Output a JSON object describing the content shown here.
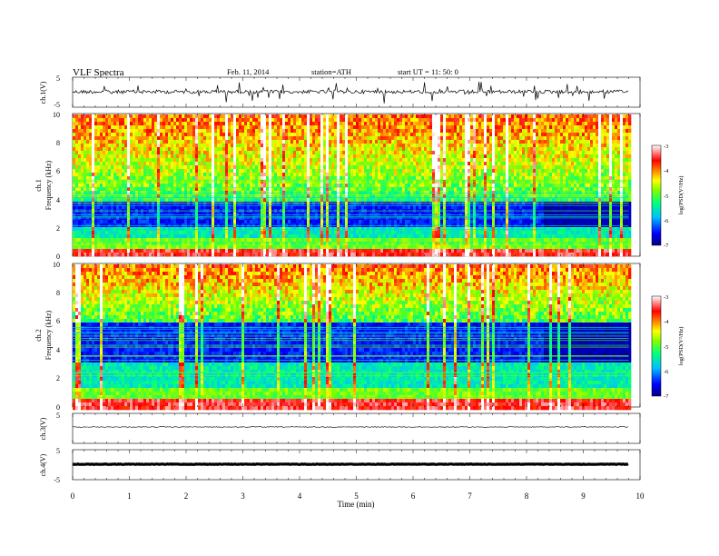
{
  "header": {
    "title": "VLF  Spectra",
    "date": "Feb. 11, 2014",
    "station": "station=ATH",
    "start": "start  UT  =    11: 50: 0"
  },
  "chart_data": [
    {
      "type": "line",
      "panel": "ch1",
      "ylabel": "ch.1(V)",
      "ylim": [
        -5,
        5
      ],
      "yticks": [
        "5",
        "-5"
      ],
      "xlim": [
        0,
        10
      ],
      "baseline": 0,
      "noise_amplitude": 1,
      "line_color": "#000000"
    },
    {
      "type": "heatmap",
      "panel": "ch1-spectrogram",
      "ylabel": "ch.1\nFrequency  (kHz)",
      "ylabel_lines": [
        "ch.1",
        "Frequency  (kHz)"
      ],
      "ylim": [
        0,
        10
      ],
      "yticks": [
        "0",
        "2",
        "4",
        "6",
        "8",
        "10"
      ],
      "xlim": [
        0,
        9.8
      ],
      "quiet_band_khz": [
        2.2,
        4.0
      ],
      "colorbar": {
        "label": "log(PSD(V²/Hz)",
        "ticks": [
          "-3",
          "-4",
          "-5",
          "-6",
          "-7"
        ],
        "range": [
          -7,
          -3
        ],
        "colors": [
          "#000080",
          "#0000ff",
          "#00bfff",
          "#00ff80",
          "#80ff00",
          "#ffff00",
          "#ff8000",
          "#ff0000",
          "#ffffff"
        ]
      }
    },
    {
      "type": "heatmap",
      "panel": "ch2-spectrogram",
      "ylabel": "ch.2\nFrequency  (kHz)",
      "ylabel_lines": [
        "ch.2",
        "Frequency  (kHz)"
      ],
      "ylim": [
        0,
        10
      ],
      "yticks": [
        "0",
        "2",
        "4",
        "6",
        "8",
        "10"
      ],
      "xlim": [
        0,
        9.8
      ],
      "quiet_band_khz": [
        3.2,
        6.0
      ],
      "colorbar": {
        "label": "log(PSD(V²/Hz)",
        "ticks": [
          "-3",
          "-4",
          "-5",
          "-6",
          "-7"
        ],
        "range": [
          -7,
          -3
        ]
      }
    },
    {
      "type": "line",
      "panel": "ch3",
      "ylabel": "ch.3(V)",
      "ylim": [
        -5,
        5
      ],
      "yticks": [
        "5"
      ],
      "xlim": [
        0,
        10
      ],
      "baseline": 0
    },
    {
      "type": "line",
      "panel": "ch4",
      "ylabel": "ch.4(V)",
      "ylim": [
        -5,
        5
      ],
      "yticks": [
        "5",
        "-5"
      ],
      "xlim": [
        0,
        10
      ],
      "baseline": 0
    },
    {
      "type": "axis",
      "panel": "time-axis",
      "xlabel": "Time  (min)",
      "xlim": [
        0,
        10
      ],
      "xticks": [
        "0",
        "1",
        "2",
        "3",
        "4",
        "5",
        "6",
        "7",
        "8",
        "9",
        "10"
      ]
    }
  ]
}
